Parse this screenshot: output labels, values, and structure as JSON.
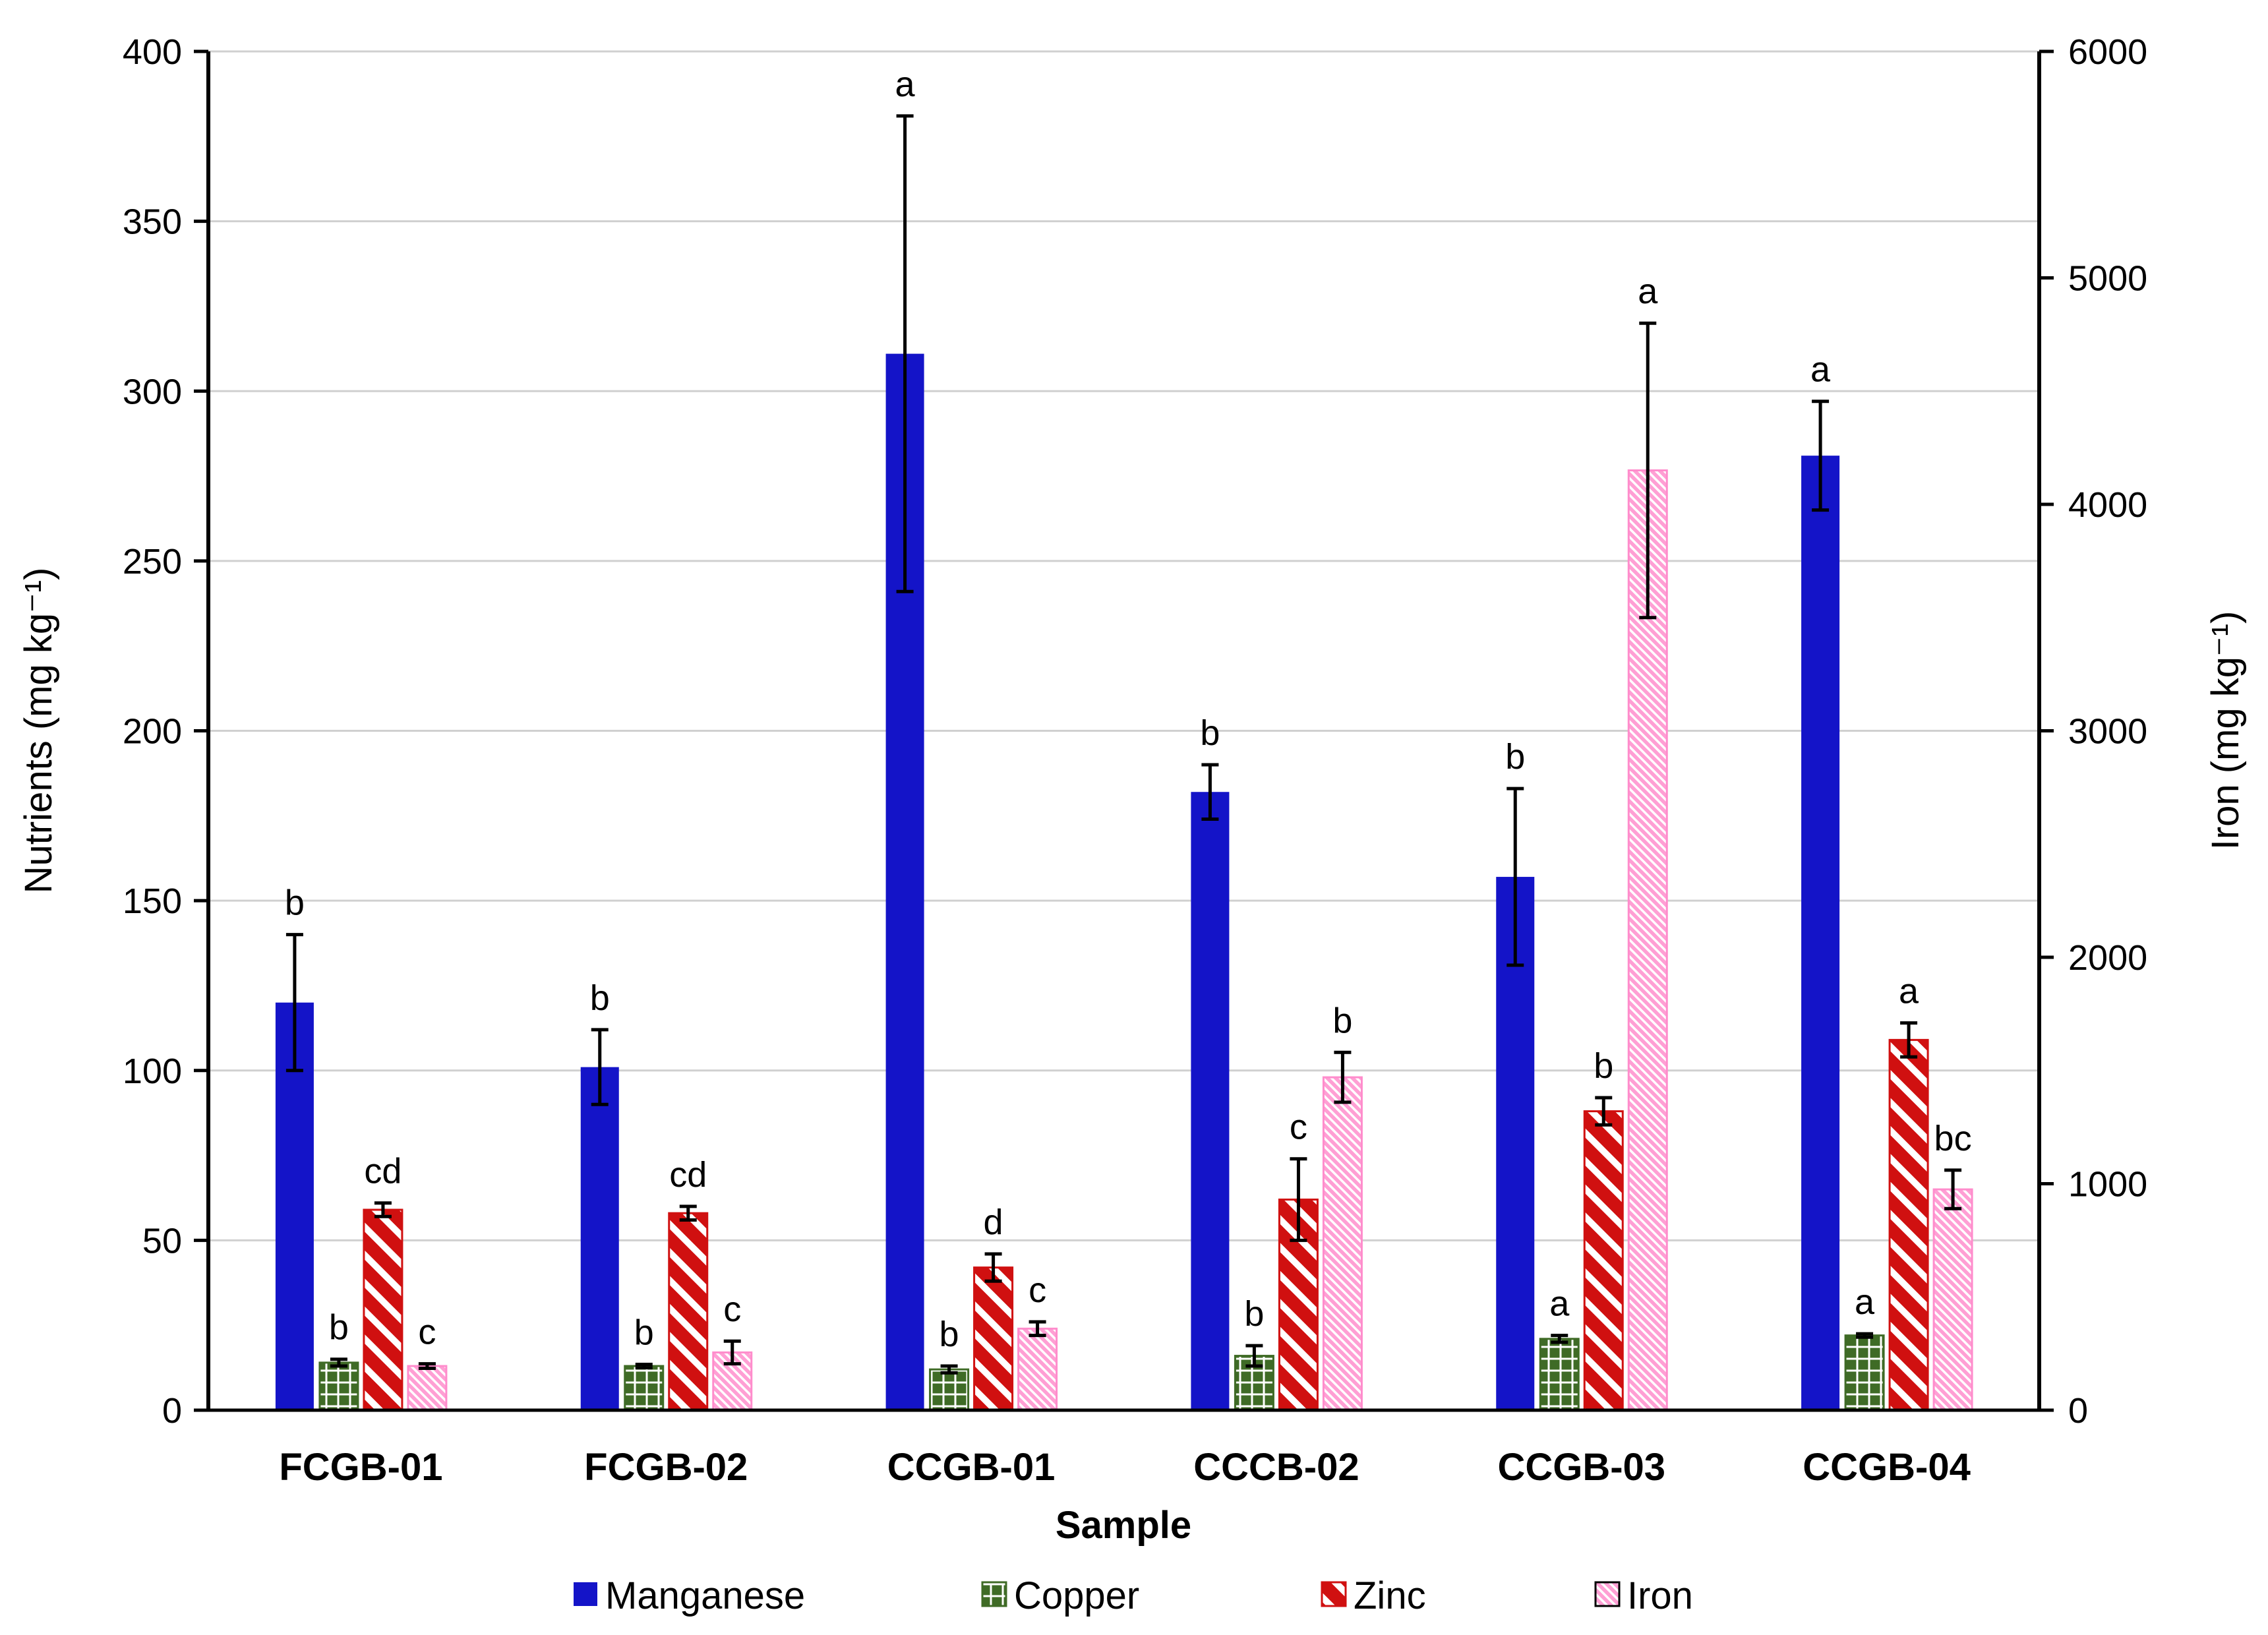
{
  "chart_data": {
    "type": "bar",
    "xlabel": "Sample",
    "ylabel": "Nutrients (mg kg⁻¹)",
    "y2label": "Iron (mg kg⁻¹)",
    "categories": [
      "FCGB-01",
      "FCGB-02",
      "CCGB-01",
      "CCCB-02",
      "CCGB-03",
      "CCGB-04"
    ],
    "ylim": [
      0,
      400
    ],
    "y2lim": [
      0,
      6000
    ],
    "yticks": [
      "0",
      "50",
      "100",
      "150",
      "200",
      "250",
      "300",
      "350",
      "400"
    ],
    "y2ticks": [
      "0",
      "1000",
      "2000",
      "3000",
      "4000",
      "5000",
      "6000"
    ],
    "grid": true,
    "legend_position": "bottom",
    "series": [
      {
        "name": "Manganese",
        "axis": "left",
        "color": "#1414c8",
        "pattern": "solid",
        "values": [
          120,
          101,
          311,
          182,
          157,
          281
        ],
        "errors": [
          20,
          11,
          70,
          8,
          26,
          16
        ],
        "labels": [
          "b",
          "b",
          "a",
          "b",
          "b",
          "a"
        ]
      },
      {
        "name": "Copper",
        "axis": "left",
        "color": "#3f6b26",
        "pattern": "grid",
        "values": [
          14,
          13,
          12,
          16,
          21,
          22
        ],
        "errors": [
          1,
          0.5,
          1,
          3,
          1,
          0.5
        ],
        "labels": [
          "b",
          "b",
          "b",
          "b",
          "a",
          "a"
        ]
      },
      {
        "name": "Zinc",
        "axis": "left",
        "color": "#d01010",
        "pattern": "diagonal",
        "values": [
          59,
          58,
          42,
          62,
          88,
          109
        ],
        "errors": [
          2,
          2,
          4,
          12,
          4,
          5
        ],
        "labels": [
          "cd",
          "cd",
          "d",
          "c",
          "b",
          "a"
        ]
      },
      {
        "name": "Iron",
        "axis": "right",
        "color": "#ff8ccc",
        "pattern": "fine-diagonal",
        "values": [
          195,
          255,
          360,
          1470,
          4150,
          975
        ],
        "errors": [
          10,
          50,
          30,
          110,
          650,
          85
        ],
        "labels": [
          "c",
          "c",
          "c",
          "b",
          "a",
          "bc"
        ]
      }
    ]
  }
}
